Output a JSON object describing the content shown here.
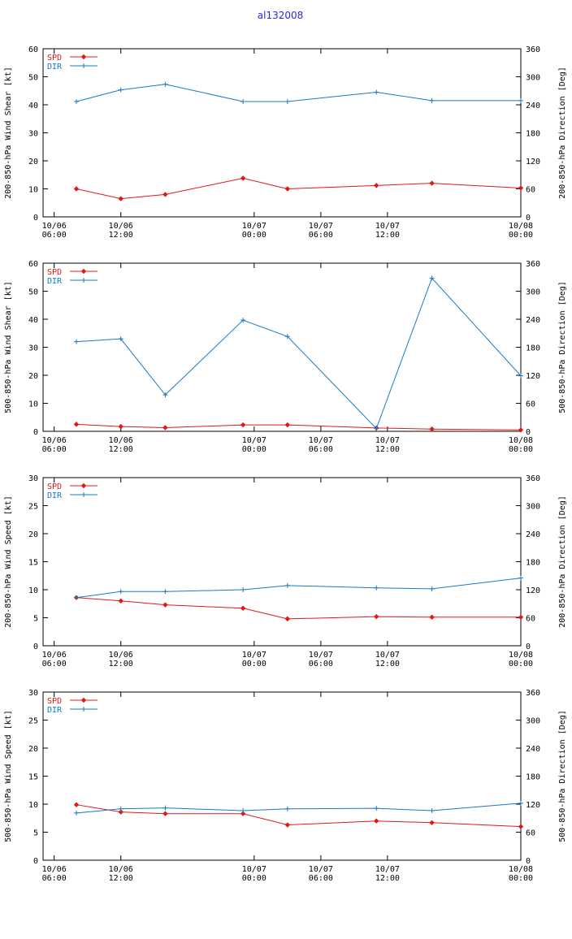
{
  "title": "al132008",
  "colors": {
    "spd": "#e01818",
    "dir": "#1a78c8",
    "axis": "#000000"
  },
  "x_ticks": [
    {
      "t": 0,
      "line1": "10/06",
      "line2": "06:00"
    },
    {
      "t": 6,
      "line1": "10/06",
      "line2": "12:00"
    },
    {
      "t": 18,
      "line1": "10/07",
      "line2": "00:00"
    },
    {
      "t": 24,
      "line1": "10/07",
      "line2": "06:00"
    },
    {
      "t": 30,
      "line1": "10/07",
      "line2": "12:00"
    },
    {
      "t": 42,
      "line1": "10/08",
      "line2": "00:00"
    }
  ],
  "chart_data": [
    {
      "type": "line",
      "ylabel": "200-850-hPa Wind Shear [kt]",
      "y2label": "200-850-hPa Direction [Deg]",
      "ylim": [
        0,
        60
      ],
      "yticks": [
        0,
        10,
        20,
        30,
        40,
        50,
        60
      ],
      "y2lim": [
        0,
        360
      ],
      "y2ticks": [
        0,
        60,
        120,
        180,
        240,
        300,
        360
      ],
      "xlim": [
        -1,
        42
      ],
      "x": [
        2,
        6,
        10,
        17,
        21,
        29,
        34,
        42
      ],
      "series": [
        {
          "name": "SPD",
          "axis": "left",
          "values": [
            10,
            6.5,
            8,
            13.8,
            10,
            11.2,
            12,
            10.3
          ]
        },
        {
          "name": "DIR",
          "axis": "right",
          "values": [
            247,
            272,
            284,
            247,
            247,
            267,
            249,
            249
          ]
        }
      ]
    },
    {
      "type": "line",
      "ylabel": "500-850-hPa Wind Shear [kt]",
      "y2label": "500-850-hPa Direction [Deg]",
      "ylim": [
        0,
        60
      ],
      "yticks": [
        0,
        10,
        20,
        30,
        40,
        50,
        60
      ],
      "y2lim": [
        0,
        360
      ],
      "y2ticks": [
        0,
        60,
        120,
        180,
        240,
        300,
        360
      ],
      "xlim": [
        -1,
        42
      ],
      "x": [
        2,
        6,
        10,
        17,
        21,
        29,
        34,
        42
      ],
      "series": [
        {
          "name": "SPD",
          "axis": "left",
          "values": [
            2.5,
            1.7,
            1.3,
            2.3,
            2.3,
            1.2,
            0.8,
            0.5
          ]
        },
        {
          "name": "DIR",
          "axis": "right",
          "values": [
            192,
            198,
            78,
            238,
            203,
            6,
            328,
            119
          ]
        }
      ]
    },
    {
      "type": "line",
      "ylabel": "200-850-hPa Wind Speed [kt]",
      "y2label": "200-850-hPa Direction [Deg]",
      "ylim": [
        0,
        30
      ],
      "yticks": [
        0,
        5,
        10,
        15,
        20,
        25,
        30
      ],
      "y2lim": [
        0,
        360
      ],
      "y2ticks": [
        0,
        60,
        120,
        180,
        240,
        300,
        360
      ],
      "xlim": [
        -1,
        42
      ],
      "x": [
        2,
        6,
        10,
        17,
        21,
        29,
        34,
        42
      ],
      "series": [
        {
          "name": "SPD",
          "axis": "left",
          "values": [
            8.6,
            8.0,
            7.3,
            6.7,
            4.8,
            5.2,
            5.1,
            5.1
          ]
        },
        {
          "name": "DIR",
          "axis": "right",
          "values": [
            103,
            116,
            116,
            120,
            129,
            124,
            122,
            145
          ]
        }
      ]
    },
    {
      "type": "line",
      "ylabel": "500-850-hPa Wind Speed [kt]",
      "y2label": "500-850-hPa Direction [Deg]",
      "ylim": [
        0,
        30
      ],
      "yticks": [
        0,
        5,
        10,
        15,
        20,
        25,
        30
      ],
      "y2lim": [
        0,
        360
      ],
      "y2ticks": [
        0,
        60,
        120,
        180,
        240,
        300,
        360
      ],
      "xlim": [
        -1,
        42
      ],
      "x": [
        2,
        6,
        10,
        17,
        21,
        29,
        34,
        42
      ],
      "series": [
        {
          "name": "SPD",
          "axis": "left",
          "values": [
            9.9,
            8.6,
            8.3,
            8.3,
            6.3,
            7.0,
            6.7,
            6.0
          ]
        },
        {
          "name": "DIR",
          "axis": "right",
          "values": [
            101,
            110,
            112,
            106,
            110,
            111,
            106,
            122
          ]
        }
      ]
    }
  ]
}
